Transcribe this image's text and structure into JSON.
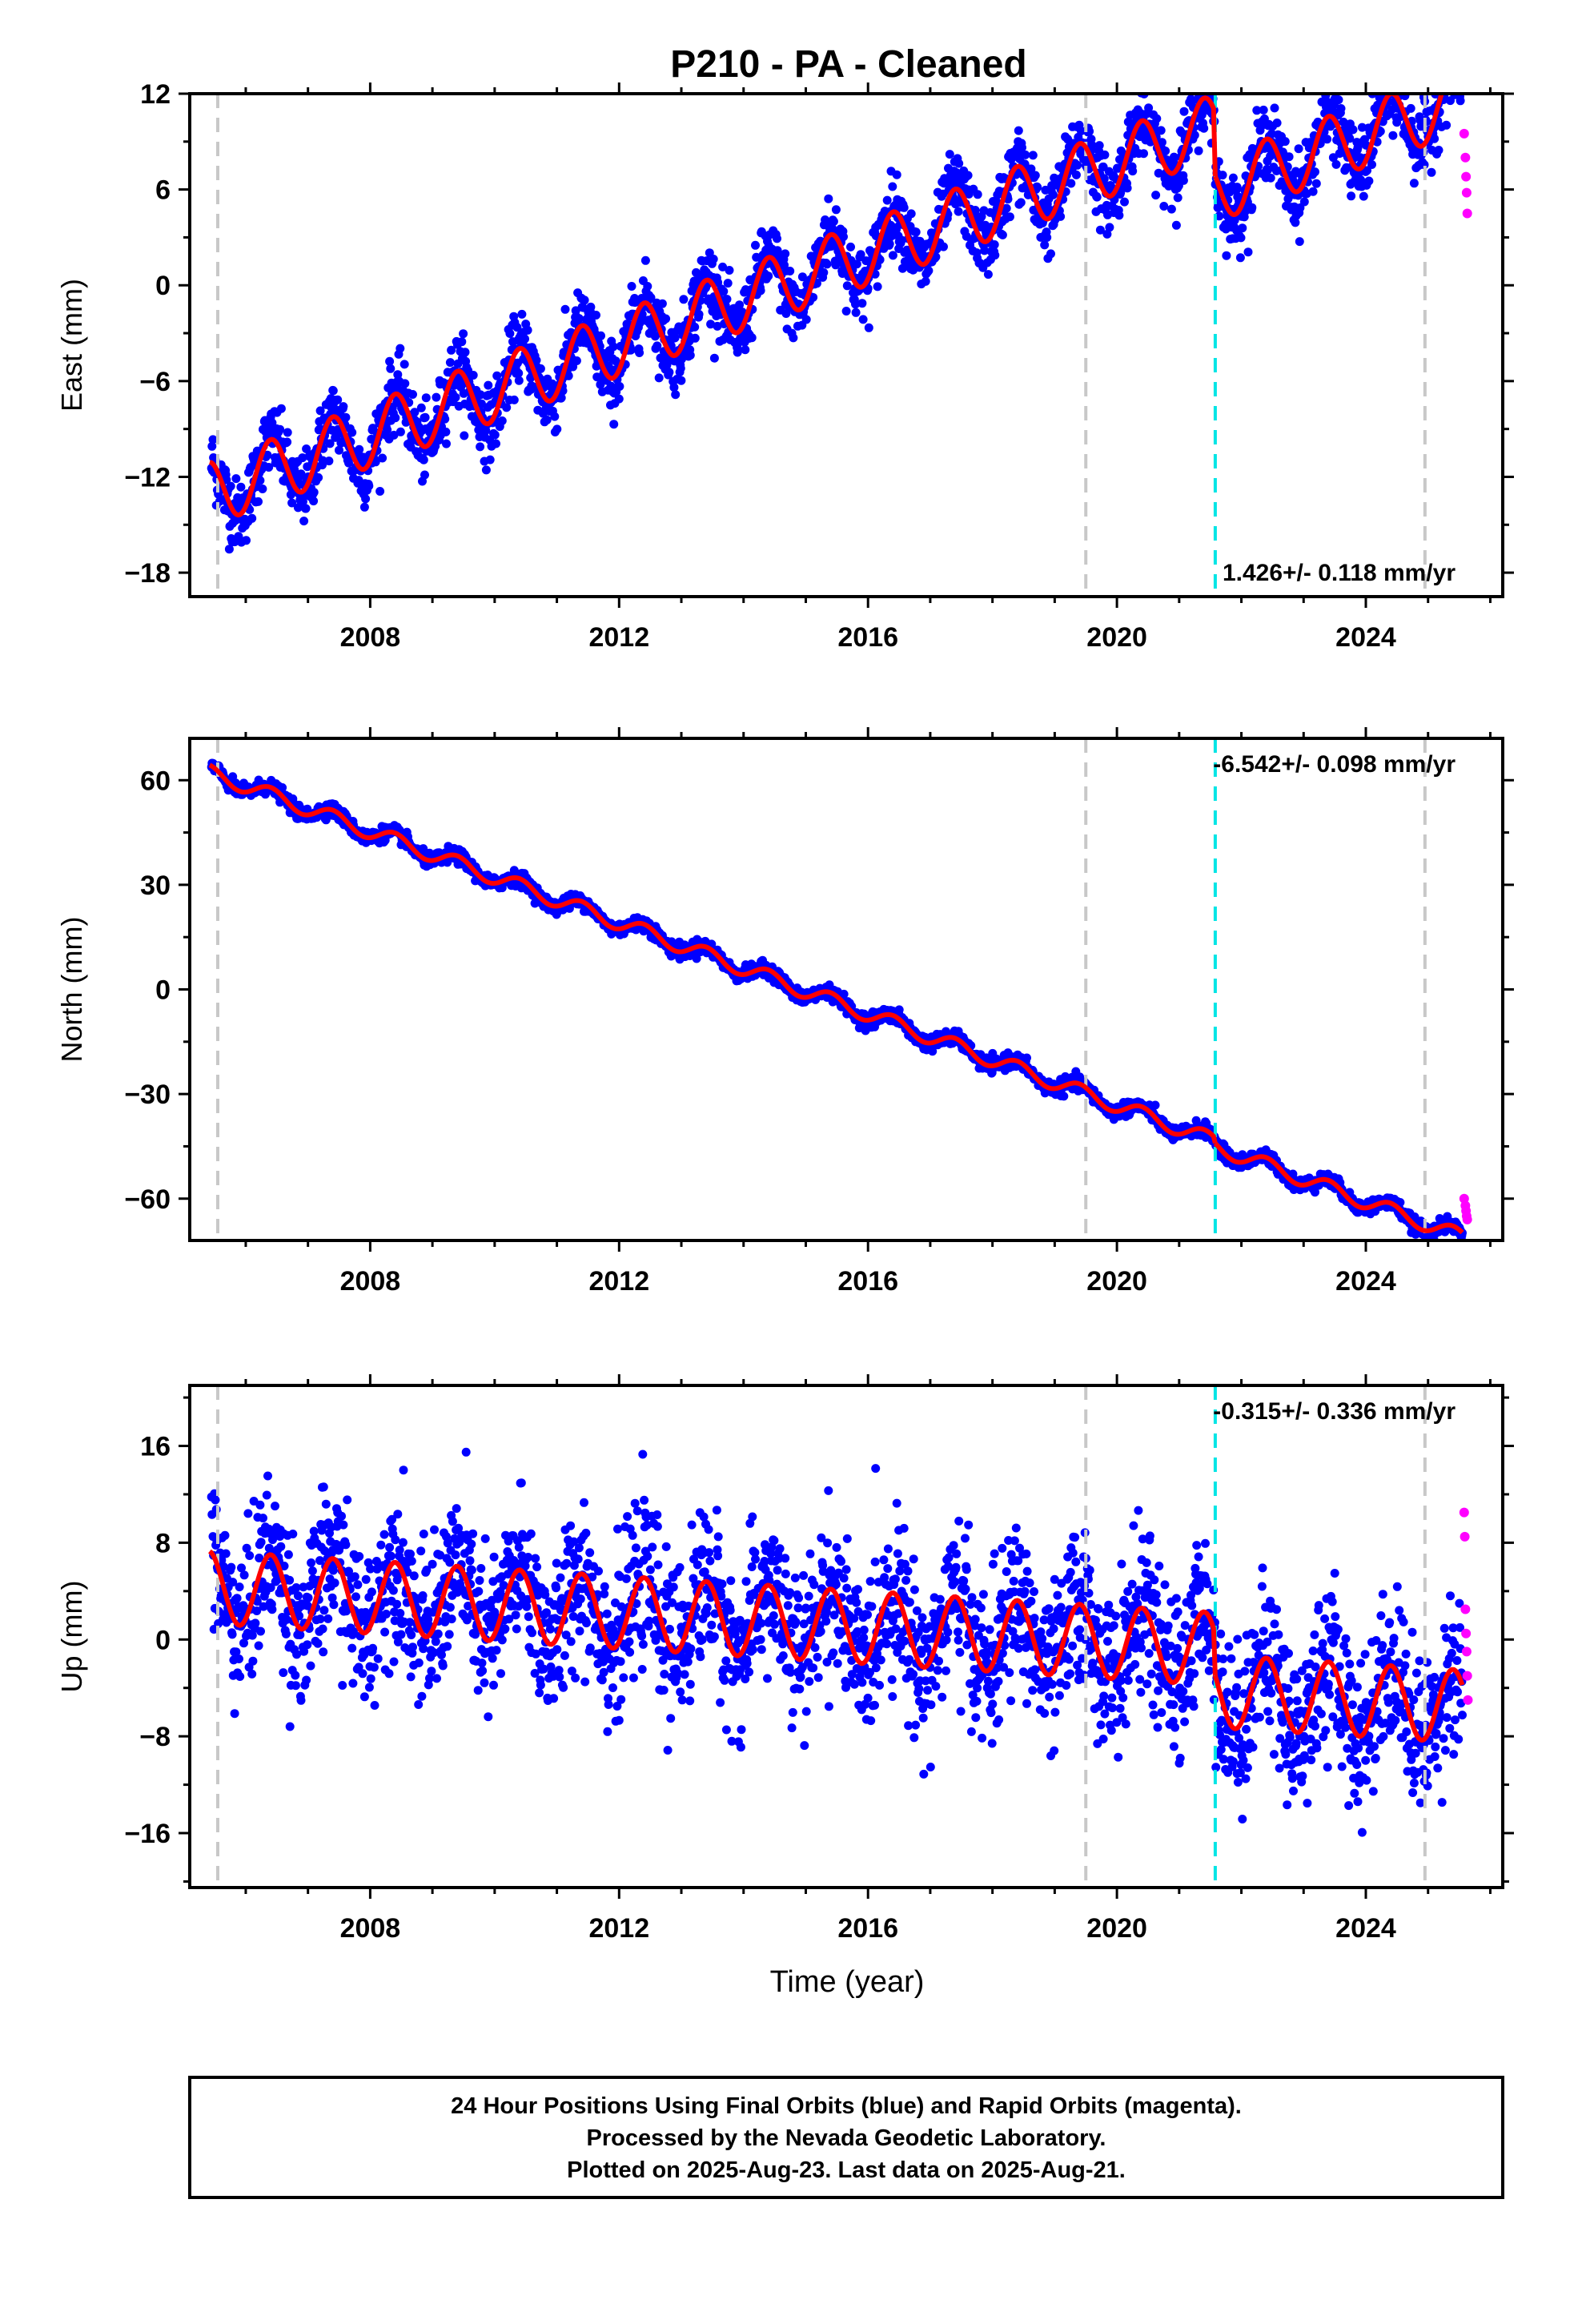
{
  "figure": {
    "title": "P210  - PA - Cleaned",
    "xlabel": "Time (year)",
    "footer": [
      "24 Hour Positions Using Final Orbits (blue) and Rapid Orbits (magenta).",
      "Processed by the Nevada Geodetic Laboratory.",
      "Plotted on 2025-Aug-23. Last data on 2025-Aug-21."
    ]
  },
  "colors": {
    "final_orbits": "#0000ff",
    "rapid_orbits": "#ff00ff",
    "model": "#ff0000",
    "event_line": "#c8c8c8",
    "equipment_line": "#00e5e5"
  },
  "chart_data": [
    {
      "type": "scatter",
      "panel": "east",
      "ylabel": "East (mm)",
      "rate_label": "1.426+/- 0.118 mm/yr",
      "rate_position": "bottom-right",
      "xlim": [
        2005.1,
        2026.2
      ],
      "ylim": [
        -19.5,
        12
      ],
      "yticks": [
        -18,
        -12,
        -6,
        0,
        6,
        12
      ],
      "xticks": [
        2008,
        2012,
        2016,
        2020,
        2024
      ],
      "grid": false,
      "model": {
        "type": "line",
        "x_range": [
          2005.42,
          2025.55
        ],
        "segments": [
          [
            2005.42,
            2021.58
          ],
          [
            2021.58,
            2025.55
          ]
        ],
        "intercept_2015": 0.6,
        "rate_mm_per_yr": 1.426,
        "seasonal_amplitude": 2.0,
        "segment_offsets": [
          0,
          -4.0
        ]
      },
      "series": [
        {
          "name": "Final Orbits",
          "color": "#0000ff",
          "x_range": [
            2005.45,
            2025.55
          ],
          "scatter": 1.1
        },
        {
          "name": "Rapid Orbits",
          "color": "#ff00ff",
          "x": [
            2025.58,
            2025.6,
            2025.61,
            2025.62,
            2025.63
          ],
          "y": [
            9.5,
            8.0,
            6.8,
            5.8,
            4.5
          ]
        }
      ],
      "vlines": [
        {
          "x": 2005.55,
          "kind": "event"
        },
        {
          "x": 2019.5,
          "kind": "event"
        },
        {
          "x": 2021.58,
          "kind": "equipment"
        },
        {
          "x": 2024.95,
          "kind": "event"
        }
      ]
    },
    {
      "type": "scatter",
      "panel": "north",
      "ylabel": "North (mm)",
      "rate_label": "-6.542+/- 0.098 mm/yr",
      "rate_position": "top-right",
      "xlim": [
        2005.1,
        2026.2
      ],
      "ylim": [
        -72,
        72
      ],
      "yticks": [
        -60,
        -30,
        0,
        30,
        60
      ],
      "xticks": [
        2008,
        2012,
        2016,
        2020,
        2024
      ],
      "grid": false,
      "model": {
        "type": "line",
        "x_range": [
          2005.42,
          2025.55
        ],
        "segments": [
          [
            2005.42,
            2021.58
          ],
          [
            2021.58,
            2025.55
          ]
        ],
        "intercept_2015": -0.5,
        "rate_mm_per_yr": -6.542,
        "seasonal_amplitude": 2.2,
        "segment_offsets": [
          0,
          -1.5
        ]
      },
      "series": [
        {
          "name": "Final Orbits",
          "color": "#0000ff",
          "x_range": [
            2005.45,
            2025.55
          ],
          "scatter": 1.0
        },
        {
          "name": "Rapid Orbits",
          "color": "#ff00ff",
          "x": [
            2025.58,
            2025.6,
            2025.61,
            2025.62,
            2025.63
          ],
          "y": [
            -60,
            -62,
            -63.5,
            -65,
            -66
          ]
        }
      ],
      "vlines": [
        {
          "x": 2005.55,
          "kind": "event"
        },
        {
          "x": 2019.5,
          "kind": "event"
        },
        {
          "x": 2021.58,
          "kind": "equipment"
        },
        {
          "x": 2024.95,
          "kind": "event"
        }
      ]
    },
    {
      "type": "scatter",
      "panel": "up",
      "ylabel": "Up (mm)",
      "rate_label": "-0.315+/- 0.336 mm/yr",
      "rate_position": "top-right",
      "xlim": [
        2005.1,
        2026.2
      ],
      "ylim": [
        -20.5,
        21
      ],
      "yticks": [
        -16,
        -8,
        0,
        8,
        16
      ],
      "xticks": [
        2008,
        2012,
        2016,
        2020,
        2024
      ],
      "grid": false,
      "model": {
        "type": "line",
        "x_range": [
          2005.42,
          2025.55
        ],
        "segments": [
          [
            2005.42,
            2021.58
          ],
          [
            2021.58,
            2025.55
          ]
        ],
        "intercept_2015": 1.3,
        "rate_mm_per_yr": -0.315,
        "seasonal_amplitude": 3.0,
        "segment_offsets": [
          0,
          -3.5
        ]
      },
      "series": [
        {
          "name": "Final Orbits",
          "color": "#0000ff",
          "x_range": [
            2005.45,
            2025.55
          ],
          "scatter": 3.2
        },
        {
          "name": "Rapid Orbits",
          "color": "#ff00ff",
          "x": [
            2025.58,
            2025.59,
            2025.6,
            2025.61,
            2025.62,
            2025.63,
            2025.64
          ],
          "y": [
            10.5,
            8.5,
            2.5,
            0.5,
            -1.0,
            -3.0,
            -5.0
          ]
        }
      ],
      "vlines": [
        {
          "x": 2005.55,
          "kind": "event"
        },
        {
          "x": 2019.5,
          "kind": "event"
        },
        {
          "x": 2021.58,
          "kind": "equipment"
        },
        {
          "x": 2024.95,
          "kind": "event"
        }
      ]
    }
  ]
}
